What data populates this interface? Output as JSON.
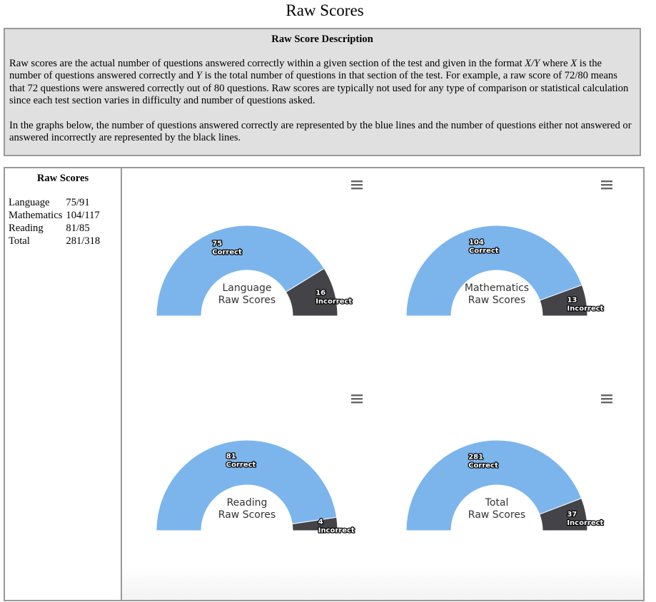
{
  "page_title": "Raw Scores",
  "description": {
    "heading": "Raw Score Description",
    "p1": [
      {
        "t": "Raw scores are the actual number of questions answered correctly within a given section of the test and given in the format "
      },
      {
        "t": "X/Y",
        "i": true
      },
      {
        "t": " where "
      },
      {
        "t": "X",
        "i": true
      },
      {
        "t": " is the number of questions answered correctly and "
      },
      {
        "t": "Y",
        "i": true
      },
      {
        "t": " is the total number of questions in that section of the test. For example, a raw score of 72/80 means that 72 questions were answered correctly out of 80 questions. Raw scores are typically not used for any type of comparison or statistical calculation since each test section varies in difficulty and number of questions asked."
      }
    ],
    "p2": "In the graphs below, the number of questions answered correctly are represented by the blue lines and the number of questions either not answered or answered incorrectly are represented by the black lines."
  },
  "sidebar": {
    "heading": "Raw Scores",
    "rows": [
      {
        "name": "Language",
        "score": "75/91"
      },
      {
        "name": "Mathematics",
        "score": "104/117"
      },
      {
        "name": "Reading",
        "score": "81/85"
      },
      {
        "name": "Total",
        "score": "281/318"
      }
    ]
  },
  "colors": {
    "correct": "#7cb5ec",
    "incorrect": "#434348"
  },
  "chart_data": [
    {
      "type": "pie",
      "title_lines": [
        "Language",
        "Raw Scores"
      ],
      "correct": 75,
      "incorrect": 16,
      "correct_label": "Correct",
      "incorrect_label": "Incorrect",
      "menu_icon": "hamburger-icon"
    },
    {
      "type": "pie",
      "title_lines": [
        "Mathematics",
        "Raw Scores"
      ],
      "correct": 104,
      "incorrect": 13,
      "correct_label": "Correct",
      "incorrect_label": "Incorrect",
      "menu_icon": "hamburger-icon"
    },
    {
      "type": "pie",
      "title_lines": [
        "Reading",
        "Raw Scores"
      ],
      "correct": 81,
      "incorrect": 4,
      "correct_label": "Correct",
      "incorrect_label": "Incorrect",
      "menu_icon": "hamburger-icon"
    },
    {
      "type": "pie",
      "title_lines": [
        "Total",
        "Raw Scores"
      ],
      "correct": 281,
      "incorrect": 37,
      "correct_label": "Correct",
      "incorrect_label": "Incorrect",
      "menu_icon": "hamburger-icon"
    }
  ]
}
